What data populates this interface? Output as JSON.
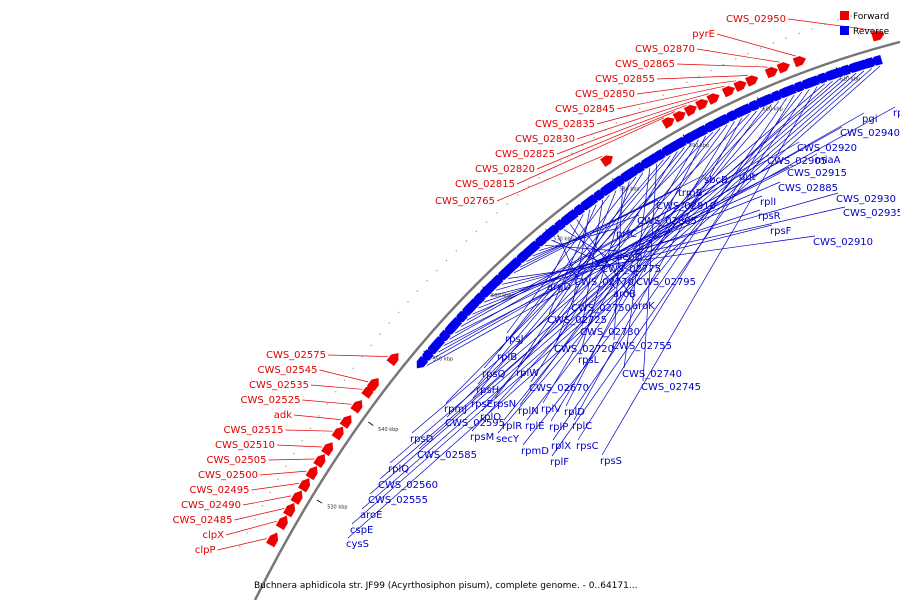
{
  "legend": {
    "forward": {
      "label": "Forward",
      "color": "#ee0000"
    },
    "reverse": {
      "label": "Reverse",
      "color": "#0000ee"
    }
  },
  "caption": "Buchnera aphidicola str. JF99 (Acyrthosiphon pisum), complete genome. - 0..64171...",
  "ticks": [
    "530 kbp",
    "540 kbp",
    "550 kbp",
    "560 kbp",
    "570 kbp",
    "580 kbp",
    "590 kbp",
    "600 kbp",
    "610 kbp"
  ],
  "forward_genes": [
    "CWS_02950",
    "pyrE",
    "CWS_02870",
    "CWS_02865",
    "CWS_02855",
    "CWS_02850",
    "CWS_02845",
    "CWS_02835",
    "CWS_02830",
    "CWS_02825",
    "CWS_02820",
    "CWS_02815",
    "CWS_02765",
    "CWS_02575",
    "CWS_02545",
    "CWS_02535",
    "CWS_02525",
    "adk",
    "CWS_02515",
    "CWS_02510",
    "CWS_02505",
    "CWS_02500",
    "CWS_02495",
    "CWS_02490",
    "CWS_02485",
    "clpX",
    "clpP"
  ],
  "reverse_genes": [
    "rpmE",
    "pgi",
    "CWS_02940",
    "miaA",
    "CWS_02920",
    "CWS_02915",
    "CWS_02905",
    "dut",
    "CWS_02885",
    "rplI",
    "rpsR",
    "rpsF",
    "CWS_02930",
    "CWS_02935",
    "CWS_02910",
    "sbcB",
    "trmB",
    "CWS_02810",
    "CWS_02805",
    "prfC",
    "deoD",
    "CWS_02775",
    "CWS_02770",
    "CWS_02795",
    "aroB",
    "aroK",
    "argD",
    "CWS_02750",
    "CWS_02725",
    "CWS_02730",
    "rpsJ",
    "CWS_02720",
    "CWS_02755",
    "rpsL",
    "rplB",
    "rplW",
    "CWS_02740",
    "CWS_02745",
    "rpsQ",
    "rpsH",
    "CWS_02670",
    "rpsE",
    "rpsN",
    "rplV",
    "rplD",
    "rpmJ",
    "rplO",
    "rplN",
    "rplP",
    "rplC",
    "CWS_02595",
    "rplR",
    "rplE",
    "rpsM",
    "secY",
    "rplX",
    "rpsC",
    "rpmD",
    "rplF",
    "rpsS",
    "rpsD",
    "CWS_02585",
    "rplQ",
    "CWS_02560",
    "CWS_02555",
    "aroE",
    "cspE",
    "cysS"
  ]
}
